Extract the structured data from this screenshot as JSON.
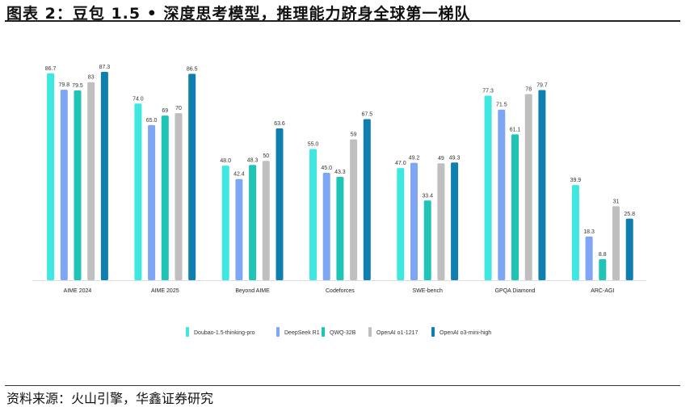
{
  "title": "图表 2：豆包 1.5 • 深度思考模型，推理能力跻身全球第一梯队",
  "source": "资料来源：火山引擎，华鑫证券研究",
  "chart_data": {
    "type": "bar",
    "categories": [
      "AIME 2024",
      "AIME 2025",
      "Beyond AIME",
      "Codeforces",
      "SWE-bench",
      "GPQA Diamond",
      "ARC-AGI"
    ],
    "series": [
      {
        "name": "Doubao-1.5-thinking-pro",
        "color": "#3ee8e0",
        "values": [
          86.7,
          74.0,
          48.0,
          55.0,
          47.0,
          77.3,
          39.9
        ],
        "labels": [
          "86.7",
          "74.0",
          "48.0",
          "55.0",
          "47.0",
          "77.3",
          "39.9"
        ]
      },
      {
        "name": "DeepSeek R1",
        "color": "#7ea6f5",
        "values": [
          79.8,
          65.0,
          42.4,
          45.0,
          49.2,
          71.5,
          18.3
        ],
        "labels": [
          "79.8",
          "65.0",
          "42.4",
          "45.0",
          "49.2",
          "71.5",
          "18.3"
        ]
      },
      {
        "name": "QWQ-32B",
        "color": "#1fc4b6",
        "values": [
          79.5,
          69,
          48.3,
          43.3,
          33.4,
          61.1,
          8.8
        ],
        "labels": [
          "79.5",
          "69",
          "48.3",
          "43.3",
          "33.4",
          "61.1",
          "8.8"
        ]
      },
      {
        "name": "OpenAI o1-1217",
        "color": "#bfbfbf",
        "values": [
          83,
          70,
          50,
          59,
          49,
          78,
          31
        ],
        "labels": [
          "83",
          "70",
          "50",
          "59",
          "49",
          "78",
          "31"
        ]
      },
      {
        "name": "OpenAI o3-mini-high",
        "color": "#0e7fae",
        "values": [
          87.3,
          86.5,
          63.6,
          67.5,
          49.3,
          79.7,
          25.8
        ],
        "labels": [
          "87.3",
          "86.5",
          "63.6",
          "67.5",
          "49.3",
          "79.7",
          "25.8"
        ]
      }
    ],
    "ylim": [
      0,
      90
    ],
    "grid": false,
    "legend": "bottom"
  }
}
